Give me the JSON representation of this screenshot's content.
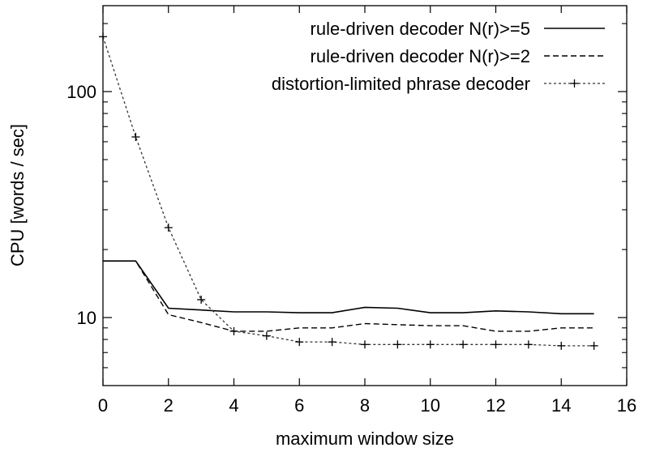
{
  "chart_data": {
    "type": "line",
    "title": "",
    "xlabel": "maximum window size",
    "ylabel": "CPU [words / sec]",
    "xlim": [
      0,
      16
    ],
    "ylim": [
      5,
      240
    ],
    "yscale": "log",
    "grid": false,
    "legend_position": "top-right",
    "x_ticks": [
      0,
      2,
      4,
      6,
      8,
      10,
      12,
      14,
      16
    ],
    "x_tick_labels": [
      "0",
      "2",
      "4",
      "6",
      "8",
      "10",
      "12",
      "14",
      "16"
    ],
    "y_ticks": [
      10,
      100
    ],
    "y_tick_labels": [
      "10",
      "100"
    ],
    "series": [
      {
        "name": "rule-driven decoder N(r)>=5",
        "style": "solid",
        "marker": "none",
        "x": [
          0,
          1,
          2,
          3,
          4,
          5,
          6,
          7,
          8,
          9,
          10,
          11,
          12,
          13,
          14,
          15
        ],
        "values": [
          17.8,
          17.8,
          11.0,
          10.8,
          10.6,
          10.6,
          10.5,
          10.5,
          11.1,
          11.0,
          10.5,
          10.5,
          10.7,
          10.6,
          10.4,
          10.4
        ]
      },
      {
        "name": "rule-driven decoder N(r)>=2",
        "style": "dashed",
        "marker": "none",
        "x": [
          0,
          1,
          2,
          3,
          4,
          5,
          6,
          7,
          8,
          9,
          10,
          11,
          12,
          13,
          14,
          15
        ],
        "values": [
          17.8,
          17.8,
          10.3,
          9.5,
          8.7,
          8.7,
          9.0,
          9.0,
          9.4,
          9.3,
          9.2,
          9.2,
          8.7,
          8.7,
          9.0,
          9.0
        ]
      },
      {
        "name": "distortion-limited phrase decoder",
        "style": "dotted",
        "marker": "plus",
        "x": [
          0,
          1,
          2,
          3,
          4,
          5,
          6,
          7,
          8,
          9,
          10,
          11,
          12,
          13,
          14,
          15
        ],
        "values": [
          175,
          63,
          25,
          12,
          8.7,
          8.3,
          7.8,
          7.8,
          7.6,
          7.6,
          7.6,
          7.6,
          7.6,
          7.6,
          7.5,
          7.5
        ]
      }
    ]
  }
}
